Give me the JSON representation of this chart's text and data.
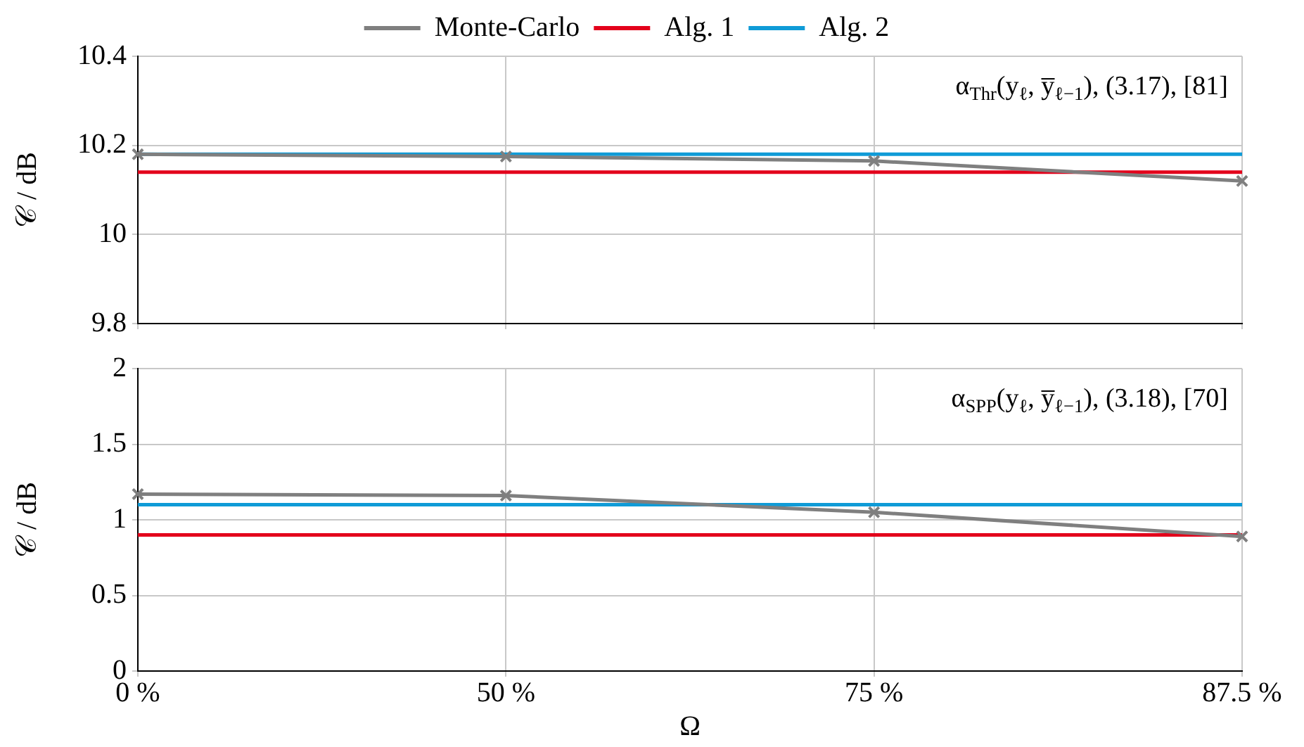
{
  "chart_data": [
    {
      "type": "line",
      "categories": [
        null,
        null,
        null,
        null
      ],
      "ylabel": "𝒞 / dB",
      "ylim": [
        9.8,
        10.4
      ],
      "yticks": [
        9.8,
        10,
        10.2,
        10.4
      ],
      "grid": true,
      "legend": "top",
      "tick_labels": "y",
      "annotations": [
        "α$_{Thr}$(y$_{ℓ}$, y̅$_{ℓ−1}$), (3.17), [81]"
      ],
      "series": [
        {
          "name": "Monte-Carlo",
          "color": "#7f7f7f",
          "marker": "cross",
          "values": [
            10.18,
            10.175,
            10.165,
            10.12
          ]
        },
        {
          "name": "Alg. 1",
          "color": "#e3001b",
          "marker": "none",
          "values": [
            10.14,
            10.14,
            10.14,
            10.14
          ]
        },
        {
          "name": "Alg. 2",
          "color": "#0f9bd7",
          "marker": "none",
          "values": [
            10.18,
            10.18,
            10.18,
            10.18
          ]
        }
      ]
    },
    {
      "type": "line",
      "categories": [
        "0 %",
        "50 %",
        "75 %",
        "87.5 %"
      ],
      "xlabel": "Ω",
      "ylabel": "𝒞 / dB",
      "ylim": [
        0,
        2
      ],
      "yticks": [
        0,
        0.5,
        1,
        1.5,
        2
      ],
      "grid": true,
      "annotations": [
        "α$_{SPP}$(y$_{ℓ}$, y̅$_{ℓ−1}$), (3.18), [70]"
      ],
      "series": [
        {
          "color": "#7f7f7f",
          "marker": "cross",
          "values": [
            1.17,
            1.16,
            1.05,
            0.89
          ]
        },
        {
          "color": "#e3001b",
          "marker": "none",
          "values": [
            0.9,
            0.9,
            0.9,
            0.9
          ]
        },
        {
          "color": "#0f9bd7",
          "marker": "none",
          "values": [
            1.1,
            1.1,
            1.1,
            1.1
          ]
        }
      ]
    }
  ]
}
